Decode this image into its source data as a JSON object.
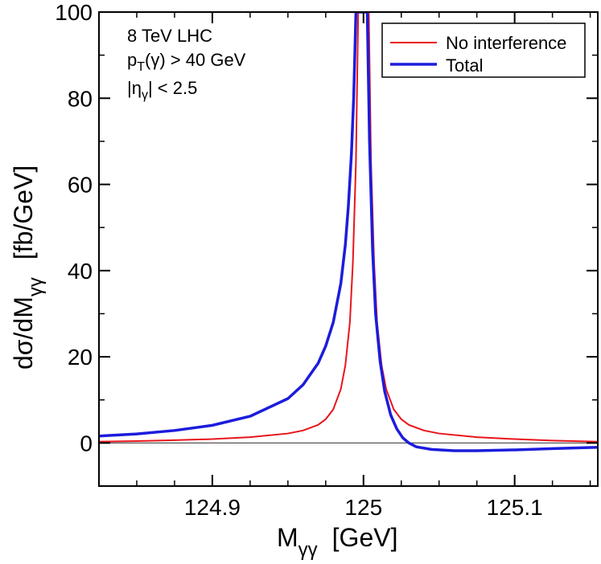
{
  "chart_data": {
    "type": "line",
    "xlabel": {
      "main": "M",
      "sub": "γγ",
      "units": "[GeV]"
    },
    "ylabel": {
      "main": "dσ/dM",
      "sub": "γγ",
      "units": "[fb/GeV]"
    },
    "xlim": [
      124.825,
      125.155
    ],
    "ylim": [
      -10,
      100
    ],
    "x_ticks": [
      124.9,
      125,
      125.1
    ],
    "x_tick_labels": [
      "124.9",
      "125",
      "125.1"
    ],
    "y_ticks": [
      0,
      20,
      40,
      60,
      80,
      100
    ],
    "y_tick_labels": [
      "0",
      "20",
      "40",
      "60",
      "80",
      "100"
    ],
    "annotations": {
      "line1": "8 TeV LHC",
      "line2_pre": "p",
      "line2_sub": "T",
      "line2_post": "(γ) > 40 GeV",
      "line3_pre": "|η",
      "line3_sub": "γ",
      "line3_post": "| < 2.5"
    },
    "legend_position": "top-right",
    "series": [
      {
        "name": "No interference",
        "color": "#e8141b",
        "points": [
          [
            124.825,
            0.3
          ],
          [
            124.85,
            0.45
          ],
          [
            124.875,
            0.65
          ],
          [
            124.9,
            0.9
          ],
          [
            124.925,
            1.35
          ],
          [
            124.95,
            2.2
          ],
          [
            124.96,
            2.9
          ],
          [
            124.97,
            4.2
          ],
          [
            124.975,
            5.5
          ],
          [
            124.98,
            7.8
          ],
          [
            124.985,
            12.5
          ],
          [
            124.988,
            18
          ],
          [
            124.991,
            28
          ],
          [
            124.993,
            42
          ],
          [
            124.995,
            65
          ],
          [
            124.9965,
            100
          ],
          [
            125.0035,
            100
          ],
          [
            125.005,
            65
          ],
          [
            125.007,
            42
          ],
          [
            125.009,
            28
          ],
          [
            125.012,
            18
          ],
          [
            125.015,
            12.5
          ],
          [
            125.02,
            7.8
          ],
          [
            125.025,
            5.5
          ],
          [
            125.03,
            4.2
          ],
          [
            125.04,
            2.9
          ],
          [
            125.05,
            2.2
          ],
          [
            125.075,
            1.35
          ],
          [
            125.1,
            0.9
          ],
          [
            125.125,
            0.55
          ],
          [
            125.155,
            0.3
          ]
        ]
      },
      {
        "name": "Total",
        "color": "#1c1cdc",
        "points": [
          [
            124.825,
            1.6
          ],
          [
            124.85,
            2.1
          ],
          [
            124.875,
            2.9
          ],
          [
            124.9,
            4.1
          ],
          [
            124.925,
            6.2
          ],
          [
            124.95,
            10.3
          ],
          [
            124.96,
            13.5
          ],
          [
            124.97,
            18.5
          ],
          [
            124.975,
            22.5
          ],
          [
            124.98,
            28
          ],
          [
            124.985,
            37
          ],
          [
            124.988,
            46
          ],
          [
            124.99,
            55
          ],
          [
            124.992,
            67
          ],
          [
            124.9935,
            80
          ],
          [
            124.995,
            100
          ],
          [
            125.0025,
            100
          ],
          [
            125.004,
            70
          ],
          [
            125.006,
            45
          ],
          [
            125.008,
            30
          ],
          [
            125.011,
            19
          ],
          [
            125.014,
            12
          ],
          [
            125.018,
            6.5
          ],
          [
            125.022,
            3.3
          ],
          [
            125.026,
            1.2
          ],
          [
            125.03,
            0.0
          ],
          [
            125.035,
            -0.9
          ],
          [
            125.045,
            -1.5
          ],
          [
            125.06,
            -1.8
          ],
          [
            125.075,
            -1.8
          ],
          [
            125.1,
            -1.6
          ],
          [
            125.125,
            -1.3
          ],
          [
            125.155,
            -1.0
          ]
        ]
      }
    ]
  }
}
